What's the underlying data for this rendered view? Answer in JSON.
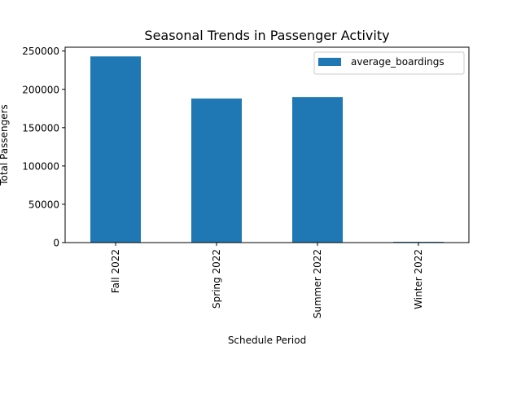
{
  "chart_data": {
    "type": "bar",
    "title": "Seasonal Trends in Passenger Activity",
    "xlabel": "Schedule Period",
    "ylabel": "Total Passengers",
    "categories": [
      "Fall 2022",
      "Spring 2022",
      "Summer 2022",
      "Winter 2022"
    ],
    "series": [
      {
        "name": "average_boardings",
        "values": [
          243000,
          188000,
          190000,
          1000
        ],
        "color": "#1f77b4"
      }
    ],
    "ylim": [
      0,
      255000
    ],
    "yticks": [
      0,
      50000,
      100000,
      150000,
      200000,
      250000
    ],
    "ytick_labels": [
      "0",
      "50000",
      "100000",
      "150000",
      "200000",
      "250000"
    ],
    "grid": false,
    "legend": "upper right"
  }
}
